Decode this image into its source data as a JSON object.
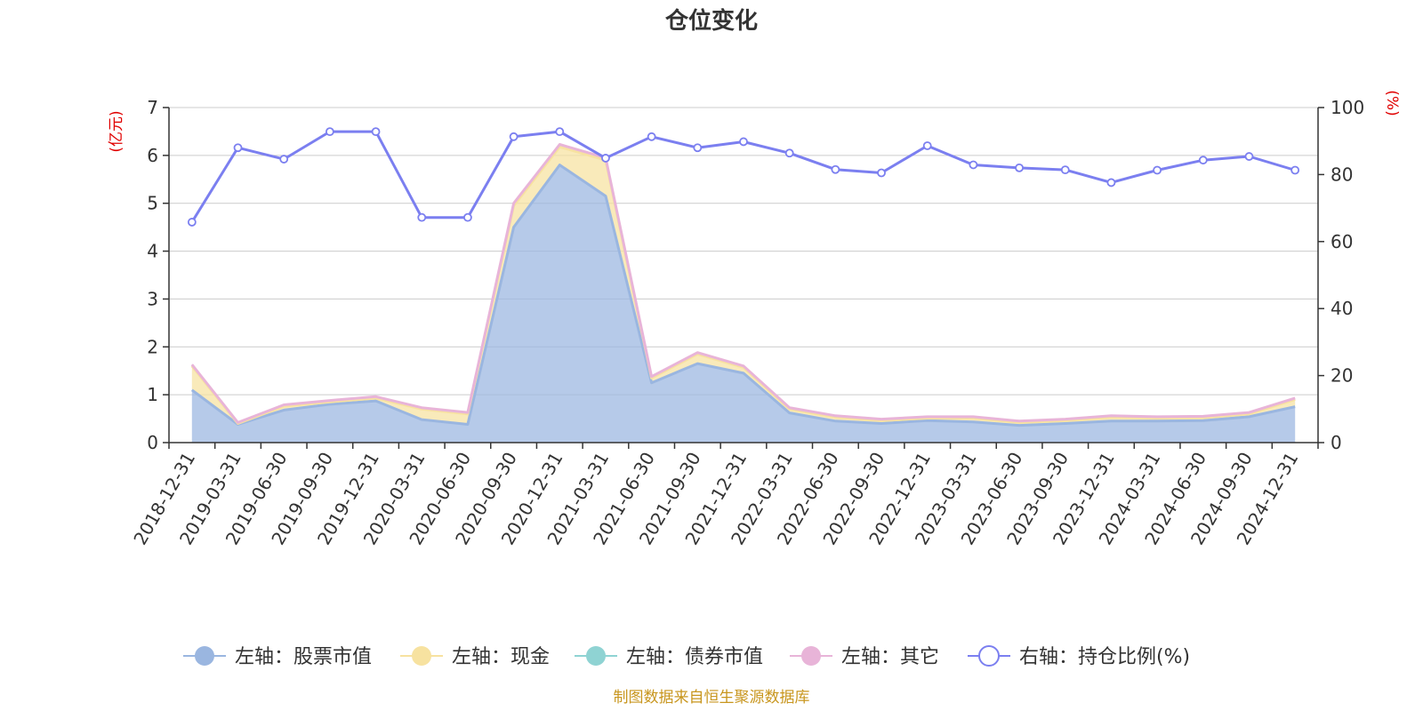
{
  "chart_data": {
    "type": "area",
    "title": "仓位变化",
    "left_axis_unit": "(亿元)",
    "right_axis_unit": "(%)",
    "ylim_left": [
      0,
      7
    ],
    "ylim_right": [
      0,
      100
    ],
    "yticks_left": [
      0,
      1,
      2,
      3,
      4,
      5,
      6,
      7
    ],
    "yticks_right": [
      0,
      20,
      40,
      60,
      80,
      100
    ],
    "grid": true,
    "legend_position": "bottom",
    "categories": [
      "2018-12-31",
      "2019-03-31",
      "2019-06-30",
      "2019-09-30",
      "2019-12-31",
      "2020-03-31",
      "2020-06-30",
      "2020-09-30",
      "2020-12-31",
      "2021-03-31",
      "2021-06-30",
      "2021-09-30",
      "2021-12-31",
      "2022-03-31",
      "2022-06-30",
      "2022-09-30",
      "2022-12-31",
      "2023-03-31",
      "2023-06-30",
      "2023-09-30",
      "2023-12-31",
      "2024-03-31",
      "2024-06-30",
      "2024-09-30",
      "2024-12-31"
    ],
    "series": [
      {
        "name": "左轴：股票市值",
        "axis": "left",
        "stack": true,
        "color": "#9ab6e0",
        "values": [
          1.1,
          0.38,
          0.68,
          0.8,
          0.87,
          0.48,
          0.38,
          4.5,
          5.8,
          5.15,
          1.25,
          1.65,
          1.45,
          0.62,
          0.45,
          0.4,
          0.46,
          0.43,
          0.36,
          0.4,
          0.45,
          0.45,
          0.46,
          0.54,
          0.75
        ]
      },
      {
        "name": "左轴：现金",
        "axis": "left",
        "stack": true,
        "color": "#f7e2a0",
        "values": [
          0.5,
          0.02,
          0.08,
          0.05,
          0.06,
          0.22,
          0.22,
          0.45,
          0.38,
          0.75,
          0.1,
          0.2,
          0.12,
          0.08,
          0.08,
          0.06,
          0.05,
          0.08,
          0.06,
          0.06,
          0.08,
          0.06,
          0.06,
          0.06,
          0.15
        ]
      },
      {
        "name": "左轴：债券市值",
        "axis": "left",
        "stack": true,
        "color": "#8fd3d3",
        "values": [
          0,
          0,
          0,
          0,
          0,
          0,
          0,
          0,
          0,
          0,
          0,
          0,
          0,
          0,
          0,
          0,
          0,
          0,
          0,
          0,
          0,
          0,
          0,
          0,
          0
        ]
      },
      {
        "name": "左轴：其它",
        "axis": "left",
        "stack": true,
        "color": "#e8b4d8",
        "values": [
          0.03,
          0.02,
          0.03,
          0.03,
          0.03,
          0.03,
          0.03,
          0.05,
          0.05,
          0.05,
          0.03,
          0.03,
          0.03,
          0.03,
          0.03,
          0.03,
          0.03,
          0.03,
          0.03,
          0.03,
          0.03,
          0.03,
          0.03,
          0.03,
          0.03
        ]
      },
      {
        "name": "右轴：持仓比例(%)",
        "axis": "right",
        "color": "#7b7ff0",
        "values": [
          65.8,
          88.0,
          84.6,
          92.8,
          92.8,
          67.2,
          67.2,
          91.3,
          92.8,
          84.9,
          91.3,
          88.0,
          89.8,
          86.4,
          81.5,
          80.5,
          88.6,
          82.9,
          82.0,
          81.4,
          77.6,
          81.3,
          84.3,
          85.4,
          81.3
        ]
      }
    ],
    "source_note": "制图数据来自恒生聚源数据库"
  }
}
